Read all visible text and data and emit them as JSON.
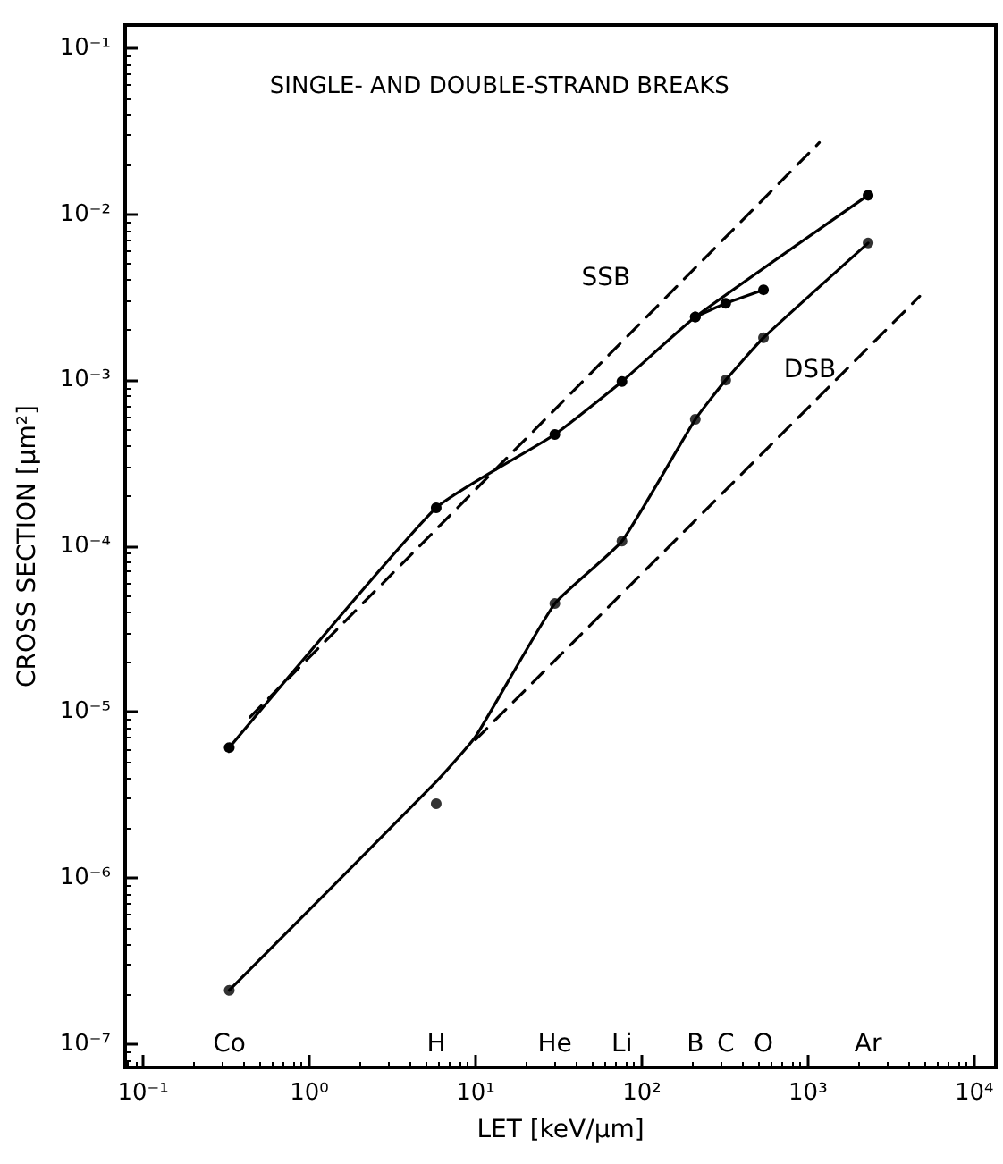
{
  "chart_data": {
    "type": "line",
    "title": "SINGLE- AND DOUBLE-STRAND BREAKS",
    "xlabel": "LET [keV/μm]",
    "ylabel": "CROSS SECTION [μm²]",
    "log": "xy",
    "grid": false,
    "legend": false,
    "xlim": [
      0.078,
      13500
    ],
    "ylim": [
      7.2e-08,
      0.138
    ],
    "xticks": [
      {
        "value": 0.1,
        "label": "10⁻¹"
      },
      {
        "value": 1,
        "label": "10⁰"
      },
      {
        "value": 10,
        "label": "10¹"
      },
      {
        "value": 100,
        "label": "10²"
      },
      {
        "value": 1000,
        "label": "10³"
      },
      {
        "value": 10000,
        "label": "10⁴"
      }
    ],
    "yticks": [
      {
        "value": 1e-07,
        "label": "10⁻⁷"
      },
      {
        "value": 1e-06,
        "label": "10⁻⁶"
      },
      {
        "value": 1e-05,
        "label": "10⁻⁵"
      },
      {
        "value": 0.0001,
        "label": "10⁻⁴"
      },
      {
        "value": 0.001,
        "label": "10⁻³"
      },
      {
        "value": 0.01,
        "label": "10⁻²"
      },
      {
        "value": 0.1,
        "label": "10⁻¹"
      }
    ],
    "series": [
      {
        "name": "SSB",
        "color": "#000000",
        "marker": "circle",
        "line_style": "solid",
        "x": [
          0.33,
          5.8,
          30,
          76,
          210,
          2300
        ],
        "values": [
          6.1e-06,
          0.00017,
          0.00047,
          0.00098,
          0.0024,
          0.013
        ]
      },
      {
        "color": "#000000",
        "marker": "circle",
        "line_style": "solid",
        "x": [
          210,
          320,
          540
        ],
        "values": [
          0.0024,
          0.0029,
          0.0035
        ]
      },
      {
        "color": "#000000",
        "marker": "none",
        "line_style": "solid",
        "x": [
          0.33,
          5.8,
          10,
          30,
          76,
          210,
          320,
          540,
          2300
        ],
        "values": [
          2.1e-07,
          3.8e-06,
          7.1e-06,
          4.5e-05,
          0.000107,
          0.00058,
          0.001,
          0.0018,
          0.0067
        ]
      },
      {
        "name": "DSB",
        "type": "scatter",
        "color": "#000000",
        "marker": "circle",
        "x": [
          0.33,
          5.8,
          30,
          76,
          210,
          320,
          540,
          2300
        ],
        "values": [
          2.1e-07,
          2.8e-06,
          4.5e-05,
          0.000107,
          0.00058,
          0.001,
          0.0018,
          0.0067
        ]
      },
      {
        "color": "#000000",
        "marker": "none",
        "line_style": "dashed",
        "x": [
          0.44,
          1170
        ],
        "values": [
          9.3e-06,
          0.027
        ]
      },
      {
        "color": "#000000",
        "marker": "none",
        "line_style": "dashed",
        "x": [
          10,
          4700
        ],
        "values": [
          6.8e-06,
          0.0032
        ]
      }
    ],
    "annotations": [
      "Co",
      "H",
      "He",
      "Li",
      "B",
      "C",
      "O",
      "Ar"
    ]
  }
}
